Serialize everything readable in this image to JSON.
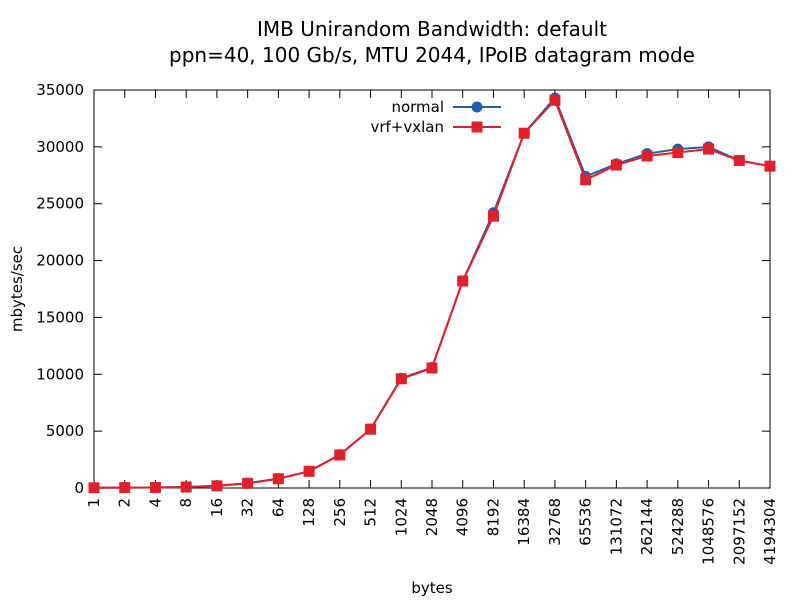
{
  "chart_data": {
    "type": "line",
    "title": "IMB Unirandom Bandwidth: default",
    "subtitle": "ppn=40, 100 Gb/s, MTU 2044, IPoIB datagram mode",
    "xlabel": "bytes",
    "ylabel": "mbytes/sec",
    "ylim": [
      0,
      35000
    ],
    "yticks": [
      "0",
      "5000",
      "10000",
      "15000",
      "20000",
      "25000",
      "30000",
      "35000"
    ],
    "categories": [
      "1",
      "2",
      "4",
      "8",
      "16",
      "32",
      "64",
      "128",
      "256",
      "512",
      "1024",
      "2048",
      "4096",
      "8192",
      "16384",
      "32768",
      "65536",
      "131072",
      "262144",
      "524288",
      "1048576",
      "2097152",
      "4194304"
    ],
    "legend_position": "top-center",
    "grid": false,
    "series": [
      {
        "name": "normal",
        "color": "#1f5fb0",
        "marker": "circle",
        "values": [
          20,
          35,
          45,
          90,
          200,
          420,
          820,
          1480,
          2920,
          5180,
          9650,
          10600,
          18200,
          24200,
          31200,
          34300,
          27400,
          28500,
          29400,
          29800,
          30000,
          28800,
          28300
        ]
      },
      {
        "name": "vrf+vxlan",
        "color": "#e0202a",
        "marker": "square",
        "values": [
          20,
          35,
          45,
          90,
          190,
          410,
          810,
          1470,
          2910,
          5170,
          9600,
          10550,
          18200,
          23900,
          31200,
          34100,
          27100,
          28400,
          29200,
          29500,
          29800,
          28800,
          28300
        ]
      }
    ]
  }
}
